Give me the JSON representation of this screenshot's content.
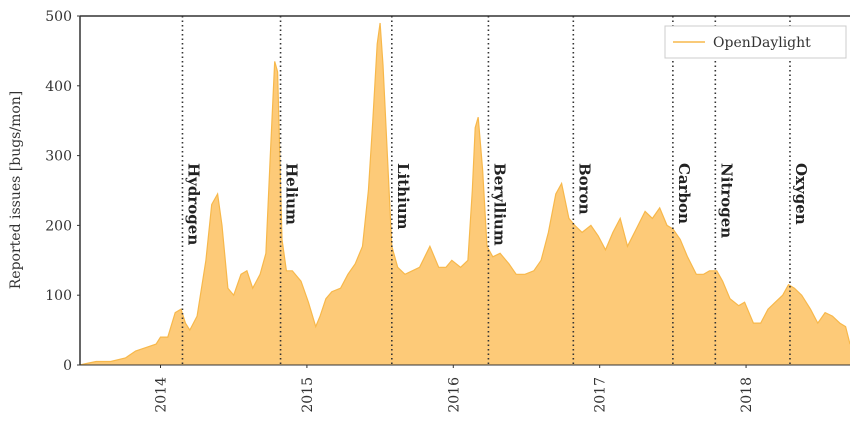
{
  "chart_data": {
    "type": "area",
    "ylabel": "Reported issues [bugs/mon]",
    "x": [
      2013.45,
      2013.49,
      2013.56,
      2013.66,
      2013.76,
      2013.83,
      2013.9,
      2013.97,
      2014.0,
      2014.05,
      2014.1,
      2014.14,
      2014.17,
      2014.2,
      2014.25,
      2014.31,
      2014.35,
      2014.39,
      2014.42,
      2014.46,
      2014.5,
      2014.55,
      2014.59,
      2014.63,
      2014.68,
      2014.72,
      2014.75,
      2014.78,
      2014.8,
      2014.83,
      2014.86,
      2014.9,
      2014.96,
      2015.01,
      2015.06,
      2015.09,
      2015.13,
      2015.17,
      2015.23,
      2015.28,
      2015.33,
      2015.38,
      2015.42,
      2015.45,
      2015.48,
      2015.5,
      2015.52,
      2015.55,
      2015.58,
      2015.62,
      2015.67,
      2015.72,
      2015.77,
      2015.84,
      2015.9,
      2015.95,
      2015.99,
      2016.05,
      2016.1,
      2016.13,
      2016.15,
      2016.17,
      2016.2,
      2016.23,
      2016.27,
      2016.32,
      2016.38,
      2016.43,
      2016.49,
      2016.55,
      2016.6,
      2016.65,
      2016.7,
      2016.74,
      2016.79,
      2016.83,
      2016.88,
      2016.94,
      2016.99,
      2017.04,
      2017.09,
      2017.14,
      2017.19,
      2017.25,
      2017.31,
      2017.36,
      2017.41,
      2017.46,
      2017.5,
      2017.55,
      2017.6,
      2017.66,
      2017.71,
      2017.75,
      2017.8,
      2017.84,
      2017.89,
      2017.95,
      2017.99,
      2018.05,
      2018.1,
      2018.15,
      2018.2,
      2018.25,
      2018.29,
      2018.33,
      2018.38,
      2018.44,
      2018.49,
      2018.54,
      2018.59,
      2018.64,
      2018.68,
      2018.71
    ],
    "series": [
      {
        "name": "OpenDaylight",
        "color": "#f7b84b",
        "fill": "#fdca78",
        "values": [
          0,
          2,
          5,
          5,
          10,
          20,
          25,
          30,
          40,
          40,
          75,
          80,
          60,
          50,
          70,
          150,
          230,
          245,
          200,
          110,
          100,
          130,
          135,
          110,
          130,
          160,
          300,
          435,
          420,
          180,
          135,
          135,
          120,
          90,
          55,
          70,
          95,
          105,
          110,
          130,
          145,
          170,
          250,
          350,
          460,
          490,
          430,
          300,
          170,
          140,
          130,
          135,
          140,
          170,
          140,
          140,
          150,
          140,
          150,
          250,
          340,
          355,
          280,
          170,
          155,
          160,
          145,
          130,
          130,
          135,
          150,
          190,
          245,
          260,
          210,
          200,
          190,
          200,
          185,
          165,
          190,
          210,
          170,
          195,
          220,
          210,
          225,
          200,
          195,
          180,
          155,
          130,
          130,
          135,
          135,
          120,
          95,
          85,
          90,
          60,
          60,
          80,
          90,
          100,
          115,
          110,
          100,
          80,
          60,
          75,
          70,
          60,
          55,
          30
        ]
      }
    ],
    "xlim": [
      2013.45,
      2018.71
    ],
    "ylim": [
      0,
      500
    ],
    "xticks": [
      2014,
      2015,
      2016,
      2017,
      2018
    ],
    "yticks": [
      0,
      100,
      200,
      300,
      400,
      500
    ],
    "grid": false,
    "legend": "upper right",
    "annotations": [
      {
        "x": 2014.15,
        "label": "Hydrogen"
      },
      {
        "x": 2014.82,
        "label": "Helium"
      },
      {
        "x": 2015.58,
        "label": "Lithium"
      },
      {
        "x": 2016.24,
        "label": "Beryllium"
      },
      {
        "x": 2016.82,
        "label": "Boron"
      },
      {
        "x": 2017.5,
        "label": "Carbon"
      },
      {
        "x": 2017.79,
        "label": "Nitrogen"
      },
      {
        "x": 2018.3,
        "label": "Oxygen"
      }
    ]
  }
}
